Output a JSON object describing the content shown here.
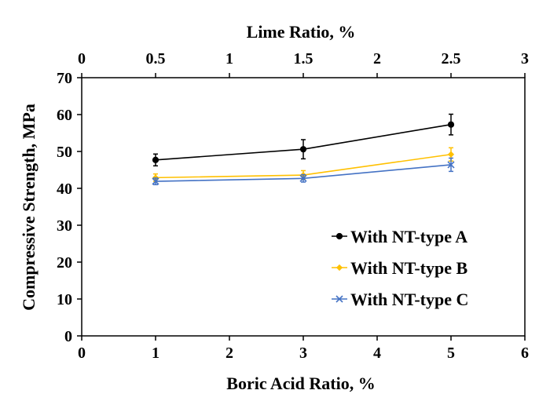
{
  "chart_data": {
    "type": "line",
    "xlabel": "Boric Acid Ratio, %",
    "x2label": "Lime Ratio, %",
    "ylabel": "Compressive Strength, MPa",
    "xlim": [
      0,
      6
    ],
    "x2lim": [
      0,
      3
    ],
    "ylim": [
      0,
      70
    ],
    "x_ticks": [
      0,
      1,
      2,
      3,
      4,
      5,
      6
    ],
    "x_tick_labels": [
      "0",
      "1",
      "2",
      "3",
      "4",
      "5",
      "6"
    ],
    "x2_ticks": [
      0,
      0.5,
      1,
      1.5,
      2,
      2.5,
      3
    ],
    "x2_tick_labels": [
      "0",
      "0.5",
      "1",
      "1.5",
      "2",
      "2.5",
      "3"
    ],
    "y_ticks": [
      0,
      10,
      20,
      30,
      40,
      50,
      60,
      70
    ],
    "y_tick_labels": [
      "0",
      "10",
      "20",
      "30",
      "40",
      "50",
      "60",
      "70"
    ],
    "grid": false,
    "legend_position": "bottom-right",
    "x": [
      1,
      3,
      5
    ],
    "series": [
      {
        "name": "With NT-type A",
        "color": "#000000",
        "marker": "circle",
        "values": [
          47.7,
          50.6,
          57.3
        ],
        "errors": [
          1.6,
          2.6,
          2.8
        ]
      },
      {
        "name": "With NT-type B",
        "color": "#FFC000",
        "marker": "diamond",
        "values": [
          42.9,
          43.6,
          49.2
        ],
        "errors": [
          1.0,
          1.2,
          1.8
        ]
      },
      {
        "name": "With NT-type C",
        "color": "#4472C4",
        "marker": "x",
        "values": [
          41.9,
          42.7,
          46.4
        ],
        "errors": [
          0.9,
          1.0,
          1.8
        ]
      }
    ]
  }
}
